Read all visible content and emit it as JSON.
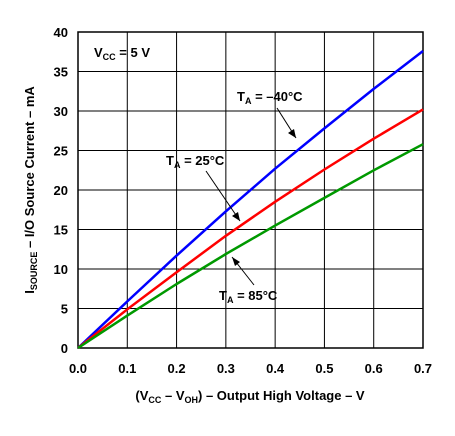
{
  "chart_data": {
    "type": "line",
    "xlabel": {
      "prefix": "(V",
      "sub1": "CC",
      "mid": " – V",
      "sub2": "OH",
      "suffix": ") – Output High Voltage – V"
    },
    "ylabel": {
      "main": "I",
      "sub": "SOURCE",
      "suffix": " – I/O Source Current – mA"
    },
    "xlim": [
      0,
      0.7
    ],
    "ylim": [
      0,
      40
    ],
    "xticks": [
      0.0,
      0.1,
      0.2,
      0.3,
      0.4,
      0.5,
      0.6,
      0.7
    ],
    "xtick_labels": [
      "0.0",
      "0.1",
      "0.2",
      "0.3",
      "0.4",
      "0.5",
      "0.6",
      "0.7"
    ],
    "yticks": [
      0,
      5,
      10,
      15,
      20,
      25,
      30,
      35,
      40
    ],
    "ytick_labels": [
      "0",
      "5",
      "10",
      "15",
      "20",
      "25",
      "30",
      "35",
      "40"
    ],
    "grid": true,
    "condition": {
      "main": "V",
      "sub": "CC",
      "suffix": " = 5 V"
    },
    "series": [
      {
        "name": "TA = -40°C",
        "label": {
          "main": "T",
          "sub": "A",
          "suffix": " = –40°C"
        },
        "color": "#0000ff",
        "x": [
          0,
          0.1,
          0.2,
          0.3,
          0.4,
          0.5,
          0.6,
          0.7
        ],
        "y": [
          0,
          5.9,
          11.7,
          17.3,
          22.7,
          27.8,
          32.8,
          37.6
        ]
      },
      {
        "name": "TA = 25°C",
        "label": {
          "main": "T",
          "sub": "A",
          "suffix": " = 25°C"
        },
        "color": "#ff0000",
        "x": [
          0,
          0.1,
          0.2,
          0.3,
          0.4,
          0.5,
          0.6,
          0.7
        ],
        "y": [
          0,
          4.9,
          9.6,
          14.2,
          18.5,
          22.6,
          26.5,
          30.2
        ]
      },
      {
        "name": "TA = 85°C",
        "label": {
          "main": "T",
          "sub": "A",
          "suffix": " = 85°C"
        },
        "color": "#009900",
        "x": [
          0,
          0.1,
          0.2,
          0.3,
          0.4,
          0.5,
          0.6,
          0.7
        ],
        "y": [
          0,
          4.1,
          8.1,
          11.9,
          15.5,
          19.0,
          22.5,
          25.8
        ]
      }
    ]
  }
}
